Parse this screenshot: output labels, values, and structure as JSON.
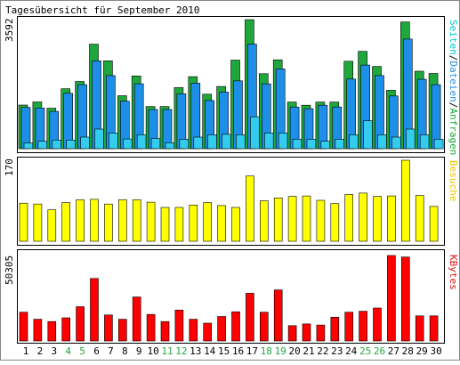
{
  "chart_data": [
    {
      "type": "bar",
      "title": "Tagesübersicht für September 2010",
      "ylabel": "Seiten/Dateien/Anfragen",
      "ylabel_parts": [
        {
          "text": "Seiten",
          "color": "#00c8c8"
        },
        {
          "text": "/",
          "color": "#000000"
        },
        {
          "text": "Dateien",
          "color": "#1e8fe8"
        },
        {
          "text": "/",
          "color": "#000000"
        },
        {
          "text": "Anfragen",
          "color": "#1ea83c"
        }
      ],
      "ymax_label": "3592",
      "ylim": [
        0,
        3592
      ],
      "categories": [
        "1",
        "2",
        "3",
        "4",
        "5",
        "6",
        "7",
        "8",
        "9",
        "10",
        "11",
        "12",
        "13",
        "14",
        "15",
        "16",
        "17",
        "18",
        "19",
        "20",
        "21",
        "22",
        "23",
        "24",
        "25",
        "26",
        "27",
        "28",
        "29",
        "30"
      ],
      "weekend_days": [
        "4",
        "5",
        "11",
        "12",
        "18",
        "19",
        "25",
        "26"
      ],
      "series": [
        {
          "name": "Anfragen",
          "color": "#1ea83c",
          "values": [
            1213,
            1300,
            1128,
            1667,
            1871,
            2909,
            2446,
            1474,
            2025,
            1175,
            1175,
            1699,
            2004,
            1515,
            1731,
            2466,
            3590,
            2086,
            2473,
            1299,
            1209,
            1299,
            1299,
            2432,
            2708,
            2290,
            1624,
            3525,
            2156,
            2094
          ]
        },
        {
          "name": "Dateien",
          "color": "#1e8fe8",
          "values": [
            1149,
            1131,
            1038,
            1541,
            1781,
            2446,
            2033,
            1320,
            1806,
            1089,
            1089,
            1528,
            1823,
            1341,
            1576,
            1888,
            2909,
            1806,
            2222,
            1160,
            1112,
            1208,
            1160,
            1936,
            2326,
            2033,
            1467,
            3049,
            1932,
            1781
          ]
        },
        {
          "name": "Seiten",
          "color": "#33ccee",
          "values": [
            157,
            207,
            240,
            240,
            322,
            544,
            436,
            270,
            387,
            282,
            165,
            262,
            322,
            387,
            400,
            387,
            887,
            436,
            436,
            262,
            262,
            207,
            262,
            387,
            779,
            387,
            322,
            544,
            387,
            262
          ]
        }
      ]
    },
    {
      "type": "bar",
      "ylabel": "Besuche",
      "ylabel_color": "#e8c800",
      "ymax_label": "170",
      "ylim": [
        0,
        170
      ],
      "categories": [
        "1",
        "2",
        "3",
        "4",
        "5",
        "6",
        "7",
        "8",
        "9",
        "10",
        "11",
        "12",
        "13",
        "14",
        "15",
        "16",
        "17",
        "18",
        "19",
        "20",
        "21",
        "22",
        "23",
        "24",
        "25",
        "26",
        "27",
        "28",
        "29",
        "30"
      ],
      "series": [
        {
          "name": "Besuche",
          "color": "#ffff00",
          "values": [
            80,
            78,
            66,
            81,
            87,
            88,
            78,
            87,
            87,
            82,
            71,
            71,
            76,
            81,
            75,
            71,
            137,
            85,
            91,
            94,
            95,
            86,
            79,
            98,
            101,
            94,
            95,
            170,
            96,
            73
          ]
        }
      ]
    },
    {
      "type": "bar",
      "ylabel": "KBytes",
      "ylabel_color": "#e01010",
      "ymax_label": "50305",
      "ylim": [
        0,
        50305
      ],
      "categories": [
        "1",
        "2",
        "3",
        "4",
        "5",
        "6",
        "7",
        "8",
        "9",
        "10",
        "11",
        "12",
        "13",
        "14",
        "15",
        "16",
        "17",
        "18",
        "19",
        "20",
        "21",
        "22",
        "23",
        "24",
        "25",
        "26",
        "27",
        "28",
        "29",
        "30"
      ],
      "series": [
        {
          "name": "KBytes",
          "color": "#ff0000",
          "values": [
            16900,
            12800,
            11400,
            13600,
            20200,
            36800,
            15300,
            12800,
            25900,
            15600,
            11400,
            18200,
            12800,
            10500,
            14400,
            17200,
            28100,
            16900,
            30000,
            9000,
            10000,
            9400,
            14000,
            16900,
            17500,
            19400,
            50300,
            49400,
            14800,
            14800
          ]
        }
      ]
    }
  ]
}
